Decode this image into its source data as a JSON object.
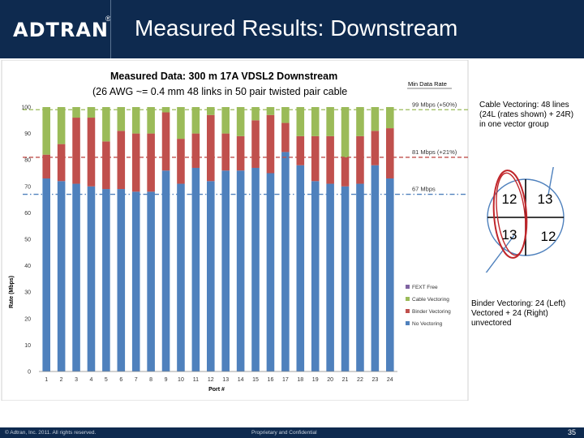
{
  "header": {
    "logo_text": "ADTRAN",
    "logo_mark": "®",
    "title": "Measured Results:  Downstream"
  },
  "annotations": {
    "cable_note": "Cable Vectoring: 48 lines (24L (rates shown) + 24R) in one vector group",
    "binder_note": "Binder Vectoring: 24 (Left) Vectored + 24 (Right) unvectored",
    "grid_cells": [
      "12",
      "13",
      "13",
      "12"
    ],
    "min_rate_heading": "Min Data Rate"
  },
  "footer": {
    "left": "© Adtran, Inc. 2011. All rights reserved.",
    "center": "Proprietary and Confidential",
    "page": "35"
  },
  "colors": {
    "header_bg": "#0e2a4f",
    "no_vectoring": "#4f81bd",
    "binder_vectoring": "#c0504d",
    "cable_vectoring": "#9bbb59",
    "fext_free": "#8064a2",
    "ref_99": "#9bbb59",
    "ref_81": "#c0504d",
    "ref_67": "#4f81bd",
    "annotation_red": "#c0262b",
    "annotation_blue": "#4f81bd"
  },
  "chart_data": {
    "type": "bar",
    "stacked": true,
    "title_line1": "Measured Data:  300 m 17A VDSL2 Downstream",
    "title_line2": "(26 AWG ~= 0.4 mm  48 links in 50 pair twisted pair cable",
    "xlabel": "Port #",
    "ylabel": "Rate (Mbps)",
    "ylim": [
      0,
      100
    ],
    "yticks": [
      0,
      10,
      20,
      30,
      40,
      50,
      60,
      70,
      80,
      90,
      100
    ],
    "categories": [
      "1",
      "2",
      "3",
      "4",
      "5",
      "6",
      "7",
      "8",
      "9",
      "10",
      "11",
      "12",
      "13",
      "14",
      "15",
      "16",
      "17",
      "18",
      "19",
      "20",
      "21",
      "22",
      "23",
      "24"
    ],
    "series": [
      {
        "name": "No Vectoring",
        "values": [
          73,
          72,
          71,
          70,
          69,
          69,
          68,
          68,
          76,
          71,
          77,
          72,
          76,
          76,
          77,
          75,
          83,
          78,
          72,
          71,
          70,
          71,
          78,
          73
        ]
      },
      {
        "name": "Binder Vectoring",
        "values": [
          9,
          14,
          25,
          26,
          18,
          22,
          22,
          22,
          22,
          17,
          13,
          25,
          14,
          13,
          18,
          22,
          11,
          11,
          17,
          18,
          11,
          18,
          13,
          19
        ]
      },
      {
        "name": "Cable Vectoring",
        "values": [
          18,
          14,
          4,
          4,
          13,
          9,
          10,
          10,
          2,
          12,
          10,
          3,
          10,
          11,
          5,
          3,
          6,
          11,
          11,
          11,
          19,
          11,
          9,
          8
        ]
      },
      {
        "name": "FEXT Free",
        "values": [
          0,
          0,
          0,
          0,
          0,
          0,
          0,
          0,
          0,
          0,
          0,
          0,
          0,
          0,
          0,
          0,
          0,
          0,
          0,
          0,
          0,
          0,
          0,
          0
        ]
      }
    ],
    "legend": [
      "FEXT Free",
      "Cable Vectoring",
      "Binder Vectoring",
      "No Vectoring"
    ],
    "legend_position": "bottom-right",
    "reference_lines": [
      {
        "value": 99,
        "label": "99 Mbps (+50%)",
        "style": "dashed"
      },
      {
        "value": 81,
        "label": "81 Mbps (+21%)",
        "style": "dashed"
      },
      {
        "value": 67,
        "label": "67 Mbps",
        "style": "dashdot"
      }
    ],
    "grid": false
  }
}
